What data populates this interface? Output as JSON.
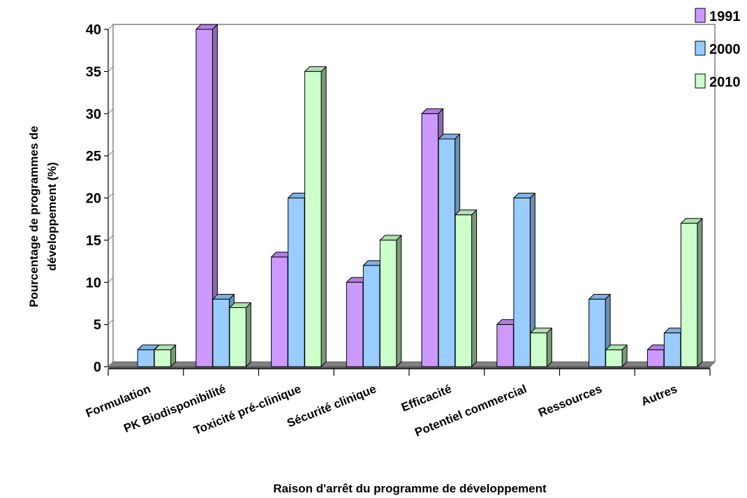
{
  "chart_data": {
    "type": "bar",
    "title": "",
    "xlabel": "Raison d'arrêt du programme de développement",
    "ylabel_lines": [
      "Pourcentage de programmes de",
      "développement (%)"
    ],
    "categories": [
      "Formulation",
      "PK Biodisponibilité",
      "Toxicité pré-clinique",
      "Sécurité clinique",
      "Efficacité",
      "Potentiel commercial",
      "Ressources",
      "Autres"
    ],
    "series": [
      {
        "name": "1991",
        "values": [
          0,
          40,
          13,
          10,
          30,
          5,
          0,
          2
        ]
      },
      {
        "name": "2000",
        "values": [
          2,
          8,
          20,
          12,
          27,
          20,
          8,
          4
        ]
      },
      {
        "name": "2010",
        "values": [
          2,
          7,
          35,
          15,
          18,
          4,
          2,
          17
        ]
      }
    ],
    "ylim": [
      0,
      40
    ],
    "yticks": [
      "0",
      "5",
      "10",
      "15",
      "20",
      "25",
      "30",
      "35",
      "40"
    ],
    "grid": false,
    "legend_position": "top-right",
    "style_3d": true
  },
  "colors": {
    "series_fill": [
      "#cc99ff",
      "#99ccff",
      "#ccffcc"
    ],
    "series_side": [
      "#8e6ab3",
      "#6b8fb3",
      "#7a9a7a"
    ],
    "series_top": [
      "#b080e0",
      "#80b0e0",
      "#b0e0b0"
    ],
    "floor": "#808080",
    "wall_line": "#808080",
    "axis_line": "#000000"
  }
}
